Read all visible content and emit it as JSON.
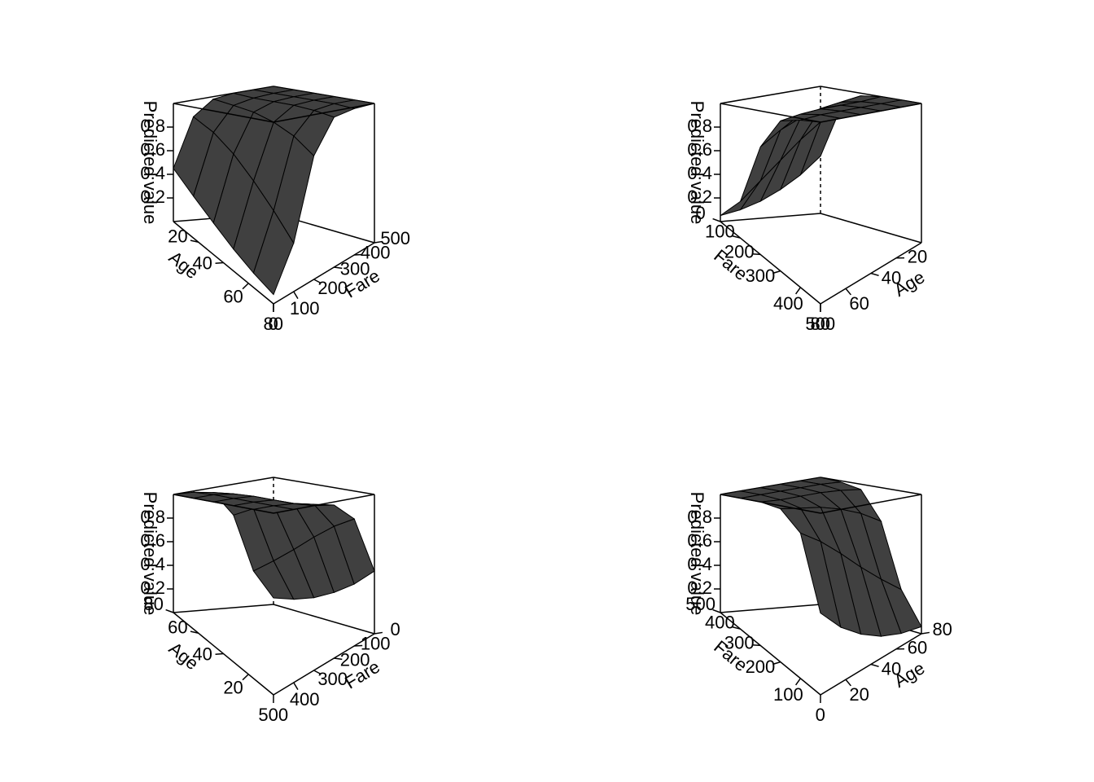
{
  "chart_data": [
    {
      "type": "surface",
      "xlabel": "Age",
      "ylabel": "Fare",
      "zlabel": "Predicted value",
      "x": [
        0,
        16,
        32,
        48,
        64,
        80
      ],
      "y": [
        0,
        100,
        200,
        300,
        400,
        500
      ],
      "z": [
        [
          0.45,
          0.86,
          0.98,
          1.0,
          1.0,
          1.0
        ],
        [
          0.32,
          0.78,
          0.96,
          0.99,
          1.0,
          1.0
        ],
        [
          0.22,
          0.67,
          0.94,
          0.99,
          1.0,
          1.0
        ],
        [
          0.14,
          0.54,
          0.9,
          0.99,
          1.0,
          1.0
        ],
        [
          0.085,
          0.41,
          0.84,
          0.98,
          1.0,
          1.0
        ],
        [
          0.051,
          0.28,
          0.75,
          0.96,
          0.99,
          1.0
        ]
      ],
      "xlim": [
        0,
        80
      ],
      "ylim": [
        0,
        500
      ],
      "zlim": [
        0,
        1
      ],
      "xticks": [
        20,
        40,
        60,
        80
      ],
      "yticks": [
        0,
        100,
        200,
        300,
        400,
        500
      ],
      "zticks": [
        0.2,
        0.4,
        0.6,
        0.8
      ],
      "color": "#404040"
    },
    {
      "type": "surface",
      "xlabel": "Age",
      "ylabel": "Fare",
      "zlabel": "Predicted value",
      "x": [
        0,
        16,
        32,
        48,
        64,
        80
      ],
      "y": [
        0,
        100,
        200,
        300,
        400,
        500
      ],
      "z": [
        [
          0.45,
          0.86,
          0.98,
          1.0,
          1.0,
          1.0
        ],
        [
          0.32,
          0.78,
          0.96,
          0.99,
          1.0,
          1.0
        ],
        [
          0.22,
          0.67,
          0.94,
          0.99,
          1.0,
          1.0
        ],
        [
          0.14,
          0.54,
          0.9,
          0.99,
          1.0,
          1.0
        ],
        [
          0.085,
          0.41,
          0.84,
          0.98,
          1.0,
          1.0
        ],
        [
          0.051,
          0.28,
          0.75,
          0.96,
          0.99,
          1.0
        ]
      ],
      "xlim": [
        0,
        80
      ],
      "ylim": [
        0,
        500
      ],
      "zlim": [
        0,
        1
      ],
      "xticks": [
        20,
        40,
        60,
        80
      ],
      "yticks": [
        0,
        100,
        200,
        300,
        400,
        500
      ],
      "zticks": [
        0.2,
        0.4,
        0.6,
        0.8
      ],
      "color": "#404040"
    },
    {
      "type": "surface",
      "xlabel": "Age",
      "ylabel": "Fare",
      "zlabel": "Predicted value",
      "x": [
        0,
        16,
        32,
        48,
        64,
        80
      ],
      "y": [
        0,
        100,
        200,
        300,
        400,
        500
      ],
      "z": [
        [
          0.45,
          0.86,
          0.98,
          1.0,
          1.0,
          1.0
        ],
        [
          0.32,
          0.78,
          0.96,
          0.99,
          1.0,
          1.0
        ],
        [
          0.22,
          0.67,
          0.94,
          0.99,
          1.0,
          1.0
        ],
        [
          0.14,
          0.54,
          0.9,
          0.99,
          1.0,
          1.0
        ],
        [
          0.085,
          0.41,
          0.84,
          0.98,
          1.0,
          1.0
        ],
        [
          0.051,
          0.28,
          0.75,
          0.96,
          0.99,
          1.0
        ]
      ],
      "xlim": [
        0,
        80
      ],
      "ylim": [
        0,
        500
      ],
      "zlim": [
        0,
        1
      ],
      "xticks": [
        20,
        40,
        60,
        80
      ],
      "yticks": [
        0,
        100,
        200,
        300,
        400,
        500
      ],
      "zticks": [
        0.2,
        0.4,
        0.6,
        0.8
      ],
      "color": "#404040"
    },
    {
      "type": "surface",
      "xlabel": "Age",
      "ylabel": "Fare",
      "zlabel": "Predicted value",
      "x": [
        0,
        16,
        32,
        48,
        64,
        80
      ],
      "y": [
        0,
        100,
        200,
        300,
        400,
        500
      ],
      "z": [
        [
          0.45,
          0.86,
          0.98,
          1.0,
          1.0,
          1.0
        ],
        [
          0.32,
          0.78,
          0.96,
          0.99,
          1.0,
          1.0
        ],
        [
          0.22,
          0.67,
          0.94,
          0.99,
          1.0,
          1.0
        ],
        [
          0.14,
          0.54,
          0.9,
          0.99,
          1.0,
          1.0
        ],
        [
          0.085,
          0.41,
          0.84,
          0.98,
          1.0,
          1.0
        ],
        [
          0.051,
          0.28,
          0.75,
          0.96,
          0.99,
          1.0
        ]
      ],
      "xlim": [
        0,
        80
      ],
      "ylim": [
        0,
        500
      ],
      "zlim": [
        0,
        1
      ],
      "xticks": [
        20,
        40,
        60,
        80
      ],
      "yticks": [
        0,
        100,
        200,
        300,
        400,
        500
      ],
      "zticks": [
        0.2,
        0.4,
        0.6,
        0.8
      ],
      "color": "#404040"
    }
  ]
}
